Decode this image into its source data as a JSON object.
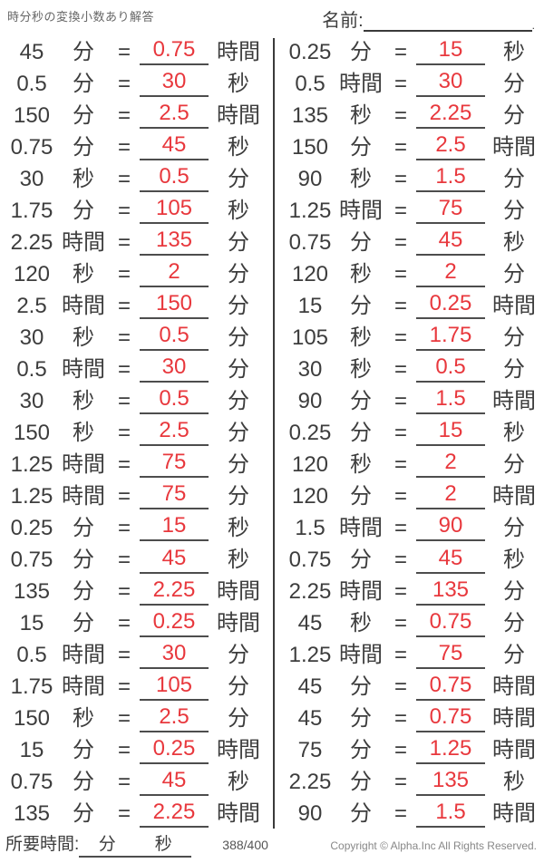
{
  "title": "時分秒の変換小数あり解答",
  "name_label": "名前:",
  "name_line_end": ".",
  "equals_sign": "=",
  "colors": {
    "answer_red": "#e8383d",
    "text": "#3d3d3d",
    "line": "#4d4d4d"
  },
  "footer": {
    "time_label": "所要時間:",
    "time_min_unit": "分",
    "time_sec_unit": "秒",
    "page_counter": "388/400",
    "copyright": "Copyright © Alpha.Inc All Rights Reserved."
  },
  "problems": {
    "left": [
      {
        "value": "45",
        "unit": "分",
        "answer": "0.75",
        "answer_unit": "時間"
      },
      {
        "value": "0.5",
        "unit": "分",
        "answer": "30",
        "answer_unit": "秒"
      },
      {
        "value": "150",
        "unit": "分",
        "answer": "2.5",
        "answer_unit": "時間"
      },
      {
        "value": "0.75",
        "unit": "分",
        "answer": "45",
        "answer_unit": "秒"
      },
      {
        "value": "30",
        "unit": "秒",
        "answer": "0.5",
        "answer_unit": "分"
      },
      {
        "value": "1.75",
        "unit": "分",
        "answer": "105",
        "answer_unit": "秒"
      },
      {
        "value": "2.25",
        "unit": "時間",
        "answer": "135",
        "answer_unit": "分"
      },
      {
        "value": "120",
        "unit": "秒",
        "answer": "2",
        "answer_unit": "分"
      },
      {
        "value": "2.5",
        "unit": "時間",
        "answer": "150",
        "answer_unit": "分"
      },
      {
        "value": "30",
        "unit": "秒",
        "answer": "0.5",
        "answer_unit": "分"
      },
      {
        "value": "0.5",
        "unit": "時間",
        "answer": "30",
        "answer_unit": "分"
      },
      {
        "value": "30",
        "unit": "秒",
        "answer": "0.5",
        "answer_unit": "分"
      },
      {
        "value": "150",
        "unit": "秒",
        "answer": "2.5",
        "answer_unit": "分"
      },
      {
        "value": "1.25",
        "unit": "時間",
        "answer": "75",
        "answer_unit": "分"
      },
      {
        "value": "1.25",
        "unit": "時間",
        "answer": "75",
        "answer_unit": "分"
      },
      {
        "value": "0.25",
        "unit": "分",
        "answer": "15",
        "answer_unit": "秒"
      },
      {
        "value": "0.75",
        "unit": "分",
        "answer": "45",
        "answer_unit": "秒"
      },
      {
        "value": "135",
        "unit": "分",
        "answer": "2.25",
        "answer_unit": "時間"
      },
      {
        "value": "15",
        "unit": "分",
        "answer": "0.25",
        "answer_unit": "時間"
      },
      {
        "value": "0.5",
        "unit": "時間",
        "answer": "30",
        "answer_unit": "分"
      },
      {
        "value": "1.75",
        "unit": "時間",
        "answer": "105",
        "answer_unit": "分"
      },
      {
        "value": "150",
        "unit": "秒",
        "answer": "2.5",
        "answer_unit": "分"
      },
      {
        "value": "15",
        "unit": "分",
        "answer": "0.25",
        "answer_unit": "時間"
      },
      {
        "value": "0.75",
        "unit": "分",
        "answer": "45",
        "answer_unit": "秒"
      },
      {
        "value": "135",
        "unit": "分",
        "answer": "2.25",
        "answer_unit": "時間"
      }
    ],
    "right": [
      {
        "value": "0.25",
        "unit": "分",
        "answer": "15",
        "answer_unit": "秒"
      },
      {
        "value": "0.5",
        "unit": "時間",
        "answer": "30",
        "answer_unit": "分"
      },
      {
        "value": "135",
        "unit": "秒",
        "answer": "2.25",
        "answer_unit": "分"
      },
      {
        "value": "150",
        "unit": "分",
        "answer": "2.5",
        "answer_unit": "時間"
      },
      {
        "value": "90",
        "unit": "秒",
        "answer": "1.5",
        "answer_unit": "分"
      },
      {
        "value": "1.25",
        "unit": "時間",
        "answer": "75",
        "answer_unit": "分"
      },
      {
        "value": "0.75",
        "unit": "分",
        "answer": "45",
        "answer_unit": "秒"
      },
      {
        "value": "120",
        "unit": "秒",
        "answer": "2",
        "answer_unit": "分"
      },
      {
        "value": "15",
        "unit": "分",
        "answer": "0.25",
        "answer_unit": "時間"
      },
      {
        "value": "105",
        "unit": "秒",
        "answer": "1.75",
        "answer_unit": "分"
      },
      {
        "value": "30",
        "unit": "秒",
        "answer": "0.5",
        "answer_unit": "分"
      },
      {
        "value": "90",
        "unit": "分",
        "answer": "1.5",
        "answer_unit": "時間"
      },
      {
        "value": "0.25",
        "unit": "分",
        "answer": "15",
        "answer_unit": "秒"
      },
      {
        "value": "120",
        "unit": "秒",
        "answer": "2",
        "answer_unit": "分"
      },
      {
        "value": "120",
        "unit": "分",
        "answer": "2",
        "answer_unit": "時間"
      },
      {
        "value": "1.5",
        "unit": "時間",
        "answer": "90",
        "answer_unit": "分"
      },
      {
        "value": "0.75",
        "unit": "分",
        "answer": "45",
        "answer_unit": "秒"
      },
      {
        "value": "2.25",
        "unit": "時間",
        "answer": "135",
        "answer_unit": "分"
      },
      {
        "value": "45",
        "unit": "秒",
        "answer": "0.75",
        "answer_unit": "分"
      },
      {
        "value": "1.25",
        "unit": "時間",
        "answer": "75",
        "answer_unit": "分"
      },
      {
        "value": "45",
        "unit": "分",
        "answer": "0.75",
        "answer_unit": "時間"
      },
      {
        "value": "45",
        "unit": "分",
        "answer": "0.75",
        "answer_unit": "時間"
      },
      {
        "value": "75",
        "unit": "分",
        "answer": "1.25",
        "answer_unit": "時間"
      },
      {
        "value": "2.25",
        "unit": "分",
        "answer": "135",
        "answer_unit": "秒"
      },
      {
        "value": "90",
        "unit": "分",
        "answer": "1.5",
        "answer_unit": "時間"
      }
    ]
  }
}
